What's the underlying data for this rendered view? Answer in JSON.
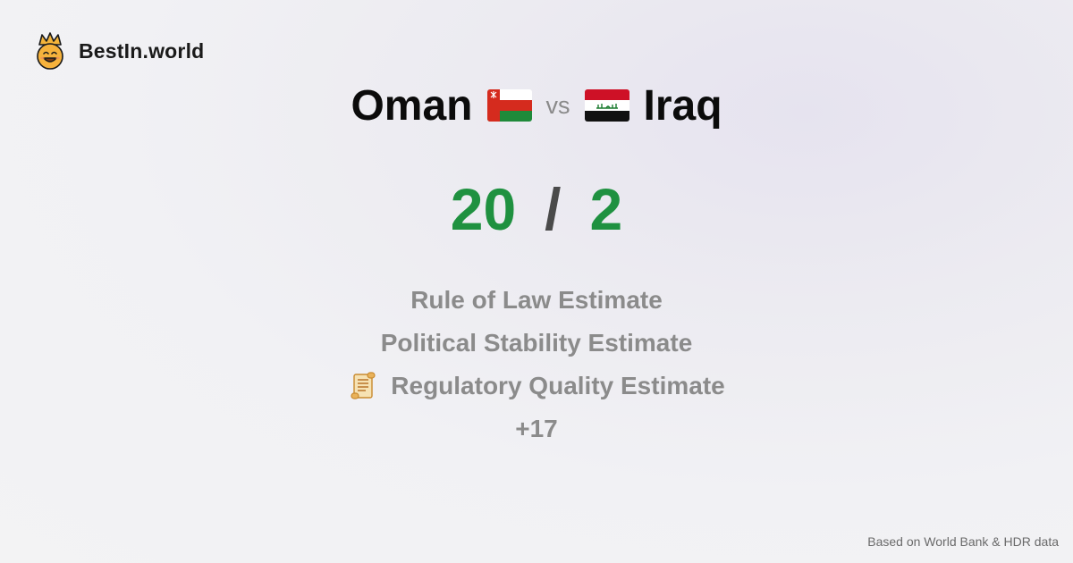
{
  "brand": {
    "name": "BestIn.world",
    "logo_icon": "crowned-smiley-icon"
  },
  "comparison": {
    "left": {
      "name": "Oman",
      "flag_icon": "oman-flag-icon"
    },
    "vs_label": "vs",
    "right": {
      "name": "Iraq",
      "flag_icon": "iraq-flag-icon"
    }
  },
  "score": {
    "left": "20",
    "separator": "/",
    "right": "2",
    "color": "#1f9140"
  },
  "metrics": [
    {
      "label": "Rule of Law Estimate"
    },
    {
      "label": "Political Stability Estimate"
    },
    {
      "label": "Regulatory Quality Estimate",
      "icon": "scroll-icon"
    }
  ],
  "more_label": "+17",
  "footer": {
    "source_note": "Based on World Bank & HDR data"
  }
}
